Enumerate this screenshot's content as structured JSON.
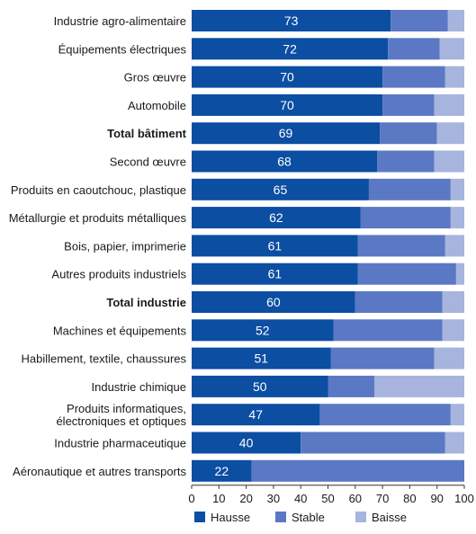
{
  "chart_data": {
    "type": "bar",
    "orientation": "horizontal",
    "stacked": true,
    "title": "",
    "xlabel": "",
    "ylabel": "",
    "xlim": [
      0,
      100
    ],
    "x_ticks": [
      "0",
      "10",
      "20",
      "30",
      "40",
      "50",
      "60",
      "70",
      "80",
      "90",
      "100"
    ],
    "grid": false,
    "legend_position": "bottom",
    "categories": [
      "Industrie agro-alimentaire",
      "Équipements électriques",
      "Gros œuvre",
      "Automobile",
      "Total bâtiment",
      "Second œuvre",
      "Produits en caoutchouc, plastique",
      "Métallurgie et produits métalliques",
      "Bois, papier, imprimerie",
      "Autres produits industriels",
      "Total industrie",
      "Machines et équipements",
      "Habillement, textile, chaussures",
      "Industrie chimique",
      "Produits informatiques,\nélectroniques et optiques",
      "Industrie pharmaceutique",
      "Aéronautique et autres transports"
    ],
    "bold_categories": [
      "Total bâtiment",
      "Total industrie"
    ],
    "series": [
      {
        "name": "Hausse",
        "color": "#0b4ea2",
        "values": [
          73,
          72,
          70,
          70,
          69,
          68,
          65,
          62,
          61,
          61,
          60,
          52,
          51,
          50,
          47,
          40,
          22
        ]
      },
      {
        "name": "Stable",
        "color": "#5b78c4",
        "values": [
          21,
          19,
          23,
          19,
          21,
          21,
          30,
          33,
          32,
          36,
          32,
          40,
          38,
          17,
          48,
          53,
          78
        ]
      },
      {
        "name": "Baisse",
        "color": "#a7b4de",
        "values": [
          6,
          9,
          7,
          11,
          10,
          11,
          5,
          5,
          7,
          3,
          8,
          8,
          11,
          33,
          5,
          7,
          0
        ]
      }
    ],
    "data_labels": [
      "73",
      "72",
      "70",
      "70",
      "69",
      "68",
      "65",
      "62",
      "61",
      "61",
      "60",
      "52",
      "51",
      "50",
      "47",
      "40",
      "22"
    ]
  }
}
